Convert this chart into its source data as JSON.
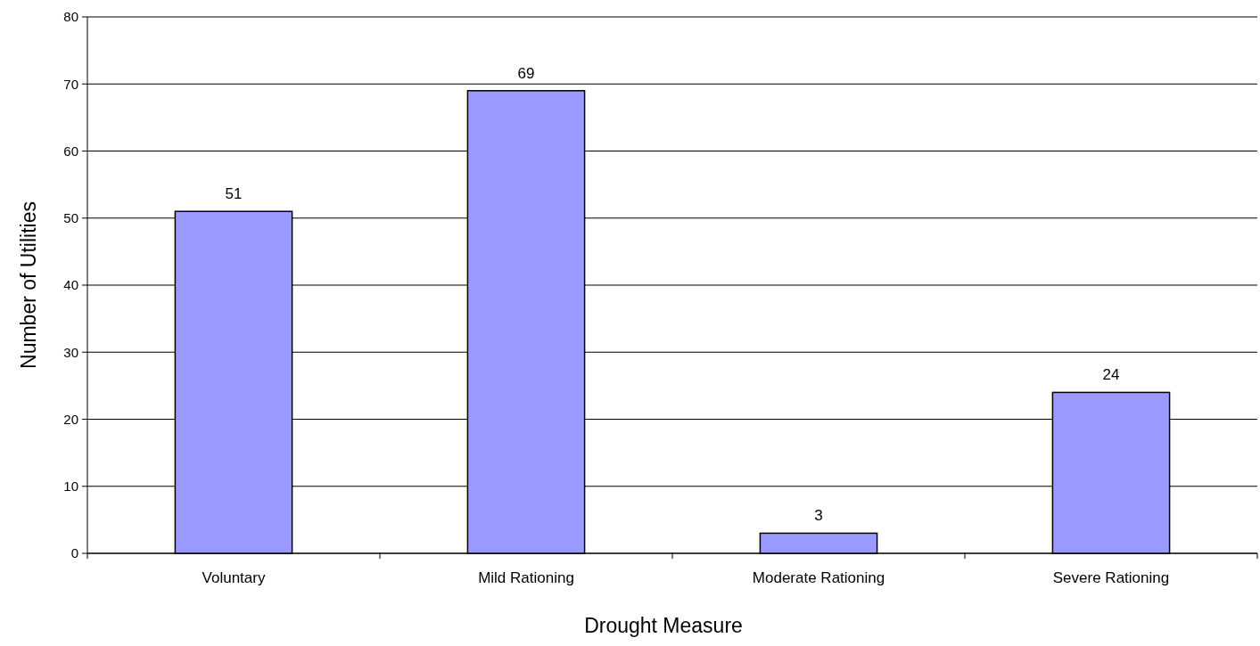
{
  "chart_data": {
    "type": "bar",
    "xlabel": "Drought Measure",
    "ylabel": "Number of Utilities",
    "categories": [
      "Voluntary",
      "Mild Rationing",
      "Moderate Rationing",
      "Severe Rationing"
    ],
    "values": [
      51,
      69,
      3,
      24
    ],
    "color": "#9999ff",
    "ylim": [
      0,
      80
    ],
    "yticks": [
      0,
      10,
      20,
      30,
      40,
      50,
      60,
      70,
      80
    ],
    "grid": "y",
    "data_labels": true
  }
}
